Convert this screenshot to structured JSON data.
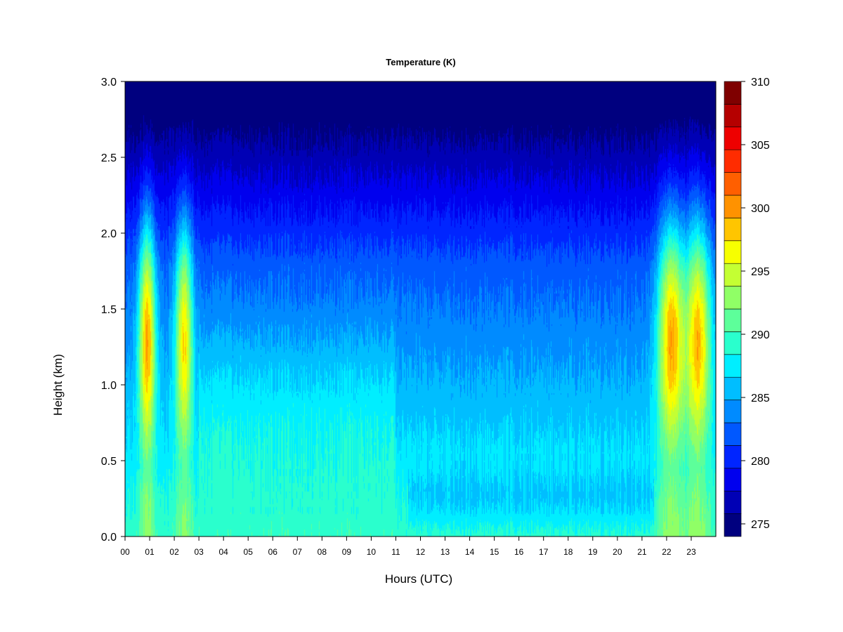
{
  "chart_data": {
    "type": "heatmap",
    "title": "Temperature (K)",
    "xlabel": "Hours (UTC)",
    "ylabel": "Height (km)",
    "xlim": [
      0,
      24
    ],
    "ylim": [
      0,
      3.0
    ],
    "x_ticks": [
      "00",
      "01",
      "02",
      "03",
      "04",
      "05",
      "06",
      "07",
      "08",
      "09",
      "10",
      "11",
      "12",
      "13",
      "14",
      "15",
      "16",
      "17",
      "18",
      "19",
      "20",
      "21",
      "22",
      "23"
    ],
    "y_ticks": [
      "0.0",
      "0.5",
      "1.0",
      "1.5",
      "2.0",
      "2.5",
      "3.0"
    ],
    "colorbar": {
      "min": 274,
      "max": 310,
      "step": 2,
      "ticks": [
        "275",
        "280",
        "285",
        "290",
        "295",
        "300",
        "305",
        "310"
      ],
      "colors": [
        "#00007f",
        "#0000b5",
        "#0000ee",
        "#0025ff",
        "#0058ff",
        "#008bff",
        "#00beff",
        "#00eeff",
        "#2affcd",
        "#5dff9a",
        "#90ff66",
        "#c4ff33",
        "#f7ff00",
        "#ffc500",
        "#ff9200",
        "#ff5f00",
        "#ff2c00",
        "#ee0000",
        "#b50000",
        "#7f0000"
      ]
    },
    "grid": false,
    "legend": "colorbar-right"
  }
}
